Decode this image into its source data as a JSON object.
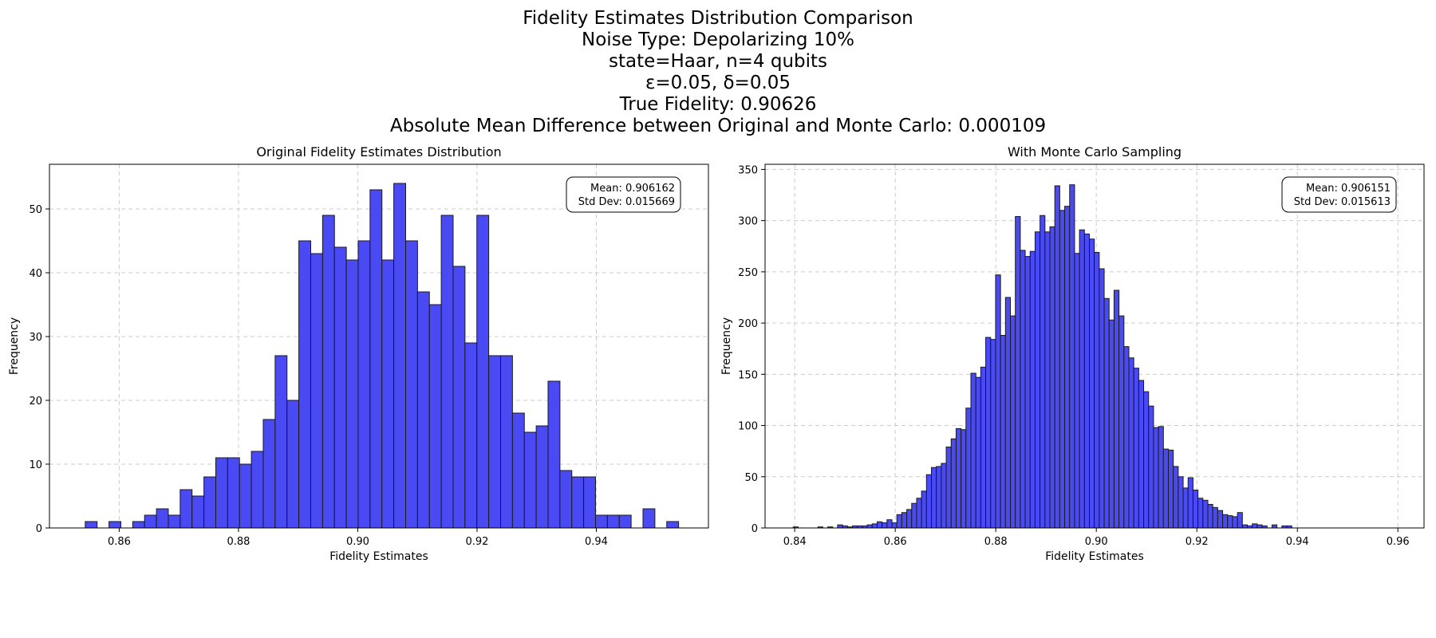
{
  "suptitle": {
    "line1": "Fidelity Estimates Distribution Comparison",
    "line2": "Noise Type: Depolarizing 10%",
    "line3": "state=Haar, n=4 qubits",
    "line4": "ε=0.05, δ=0.05",
    "line5": "True Fidelity: 0.90626",
    "line6": "Absolute Mean Difference between Original and Monte Carlo: 0.000109"
  },
  "colors": {
    "bar_fill": "#4a4af4",
    "bar_edge": "#1a1a1a",
    "grid": "#cccccc"
  },
  "chart_data": [
    {
      "type": "bar",
      "title": "Original Fidelity Estimates Distribution",
      "xlabel": "Fidelity Estimates",
      "ylabel": "Frequency",
      "xlim": [
        0.8483,
        0.9588
      ],
      "ylim": [
        0,
        57
      ],
      "xticks": [
        0.86,
        0.88,
        0.9,
        0.92,
        0.94
      ],
      "xtick_labels": [
        "0.86",
        "0.88",
        "0.90",
        "0.92",
        "0.94"
      ],
      "yticks": [
        0,
        10,
        20,
        30,
        40,
        50
      ],
      "grid": true,
      "annotation": {
        "mean": "Mean: 0.906162",
        "std": "Std Dev: 0.015669",
        "position": "top-right"
      },
      "bin_start": 0.8543,
      "bin_width": 0.00199,
      "counts": [
        1,
        0,
        1,
        0,
        1,
        2,
        3,
        2,
        6,
        5,
        8,
        11,
        11,
        10,
        12,
        17,
        27,
        20,
        45,
        43,
        49,
        44,
        42,
        45,
        53,
        42,
        54,
        45,
        37,
        35,
        49,
        41,
        29,
        49,
        27,
        27,
        18,
        15,
        16,
        23,
        9,
        8,
        8,
        2,
        2,
        2,
        0,
        3,
        0,
        1
      ]
    },
    {
      "type": "bar",
      "title": "With Monte Carlo Sampling",
      "xlabel": "Fidelity Estimates",
      "ylabel": "Frequency",
      "xlim": [
        0.8341,
        0.9652
      ],
      "ylim": [
        0,
        355
      ],
      "xticks": [
        0.84,
        0.86,
        0.88,
        0.9,
        0.92,
        0.94,
        0.96
      ],
      "xtick_labels": [
        "0.84",
        "0.86",
        "0.88",
        "0.90",
        "0.92",
        "0.94",
        "0.96"
      ],
      "yticks": [
        0,
        50,
        100,
        150,
        200,
        250,
        300,
        350
      ],
      "grid": true,
      "annotation": {
        "mean": "Mean: 0.906151",
        "std": "Std Dev: 0.015613",
        "position": "top-right"
      },
      "bin_start": 0.8397,
      "bin_width": 0.000982,
      "counts": [
        1,
        0,
        0,
        0,
        0,
        1,
        0,
        1,
        0,
        3,
        2,
        1,
        2,
        2,
        2,
        3,
        4,
        6,
        5,
        8,
        5,
        13,
        15,
        18,
        24,
        29,
        36,
        52,
        59,
        60,
        63,
        79,
        87,
        97,
        96,
        117,
        151,
        147,
        157,
        186,
        184,
        247,
        188,
        225,
        207,
        304,
        271,
        265,
        270,
        289,
        305,
        289,
        294,
        334,
        310,
        314,
        335,
        268,
        291,
        287,
        282,
        269,
        253,
        224,
        203,
        232,
        207,
        177,
        166,
        156,
        144,
        133,
        119,
        98,
        99,
        77,
        76,
        60,
        50,
        39,
        49,
        37,
        29,
        27,
        23,
        20,
        17,
        13,
        12,
        11,
        15,
        3,
        2,
        4,
        3,
        2,
        0,
        3,
        0,
        2,
        2
      ]
    }
  ]
}
